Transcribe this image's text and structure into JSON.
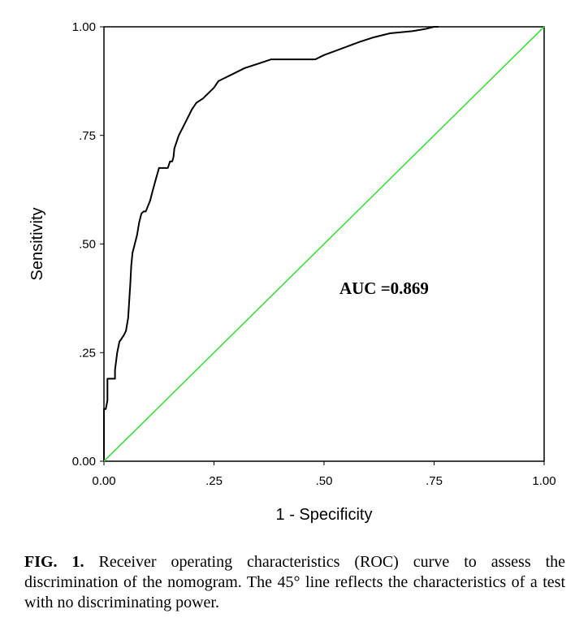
{
  "chart_data": {
    "type": "line",
    "xlabel": "1 - Specificity",
    "ylabel": "Sensitivity",
    "xlim": [
      0,
      1
    ],
    "ylim": [
      0,
      1
    ],
    "x_ticks": [
      {
        "value": 0,
        "label": "0.00"
      },
      {
        "value": 0.25,
        "label": ".25"
      },
      {
        "value": 0.5,
        "label": ".50"
      },
      {
        "value": 0.75,
        "label": ".75"
      },
      {
        "value": 1,
        "label": "1.00"
      }
    ],
    "y_ticks": [
      {
        "value": 0,
        "label": "0.00"
      },
      {
        "value": 0.25,
        "label": ".25"
      },
      {
        "value": 0.5,
        "label": ".50"
      },
      {
        "value": 0.75,
        "label": ".75"
      },
      {
        "value": 1,
        "label": "1.00"
      }
    ],
    "grid": false,
    "series": [
      {
        "color": "#000000",
        "x": [
          0,
          0,
          0.004,
          0.008,
          0.008,
          0.015,
          0.025,
          0.025,
          0.03,
          0.035,
          0.045,
          0.05,
          0.055,
          0.06,
          0.062,
          0.065,
          0.075,
          0.08,
          0.085,
          0.09,
          0.095,
          0.105,
          0.11,
          0.118,
          0.125,
          0.13,
          0.135,
          0.14,
          0.145,
          0.15,
          0.155,
          0.158,
          0.16,
          0.165,
          0.17,
          0.18,
          0.19,
          0.2,
          0.21,
          0.225,
          0.25,
          0.26,
          0.28,
          0.3,
          0.32,
          0.35,
          0.38,
          0.4,
          0.45,
          0.48,
          0.5,
          0.54,
          0.58,
          0.61,
          0.65,
          0.7,
          0.73,
          0.75,
          0.76
        ],
        "y": [
          0,
          0.12,
          0.12,
          0.14,
          0.19,
          0.19,
          0.19,
          0.21,
          0.25,
          0.275,
          0.29,
          0.3,
          0.33,
          0.41,
          0.45,
          0.48,
          0.52,
          0.55,
          0.57,
          0.575,
          0.575,
          0.6,
          0.62,
          0.65,
          0.675,
          0.675,
          0.675,
          0.675,
          0.675,
          0.69,
          0.69,
          0.7,
          0.72,
          0.735,
          0.75,
          0.77,
          0.79,
          0.81,
          0.825,
          0.835,
          0.86,
          0.875,
          0.885,
          0.895,
          0.905,
          0.915,
          0.925,
          0.925,
          0.925,
          0.925,
          0.935,
          0.95,
          0.965,
          0.975,
          0.985,
          0.99,
          0.995,
          1,
          1
        ]
      },
      {
        "color": "#3fdc3f",
        "x": [
          0,
          1
        ],
        "y": [
          0,
          1
        ]
      }
    ],
    "annotations": [
      {
        "text": "AUC =0.869",
        "x": 0.535,
        "y": 0.385
      }
    ]
  },
  "caption": {
    "label": "FIG. 1.",
    "text": "Receiver operating characteristics (ROC) curve to assess the discrimination of the nomogram. The 45° line reflects the characteristics of a test with no discriminating power."
  }
}
